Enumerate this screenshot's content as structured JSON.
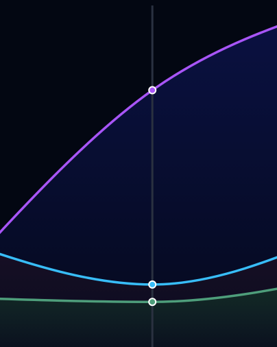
{
  "theme": {
    "background": "#030712",
    "hover_line": "#2a3140",
    "marker_stroke": "#ffffff"
  },
  "chart_data": {
    "type": "area",
    "title": "",
    "xlabel": "",
    "ylabel": "",
    "grid": false,
    "legend": "none",
    "xlim": [
      -0.55,
      0.45
    ],
    "ylim": [
      0,
      100
    ],
    "x": [
      -1,
      0,
      1
    ],
    "hover_x": 0,
    "series": [
      {
        "color": "#a855f7",
        "fill": "#0b1247",
        "values": [
          -5,
          74,
          108
        ]
      },
      {
        "color": "#38bdf8",
        "fill": "#1e1022",
        "values": [
          38,
          18,
          43
        ]
      },
      {
        "color": "#4e9e7b",
        "fill": "#123527",
        "values": [
          15,
          13,
          25
        ]
      }
    ]
  }
}
